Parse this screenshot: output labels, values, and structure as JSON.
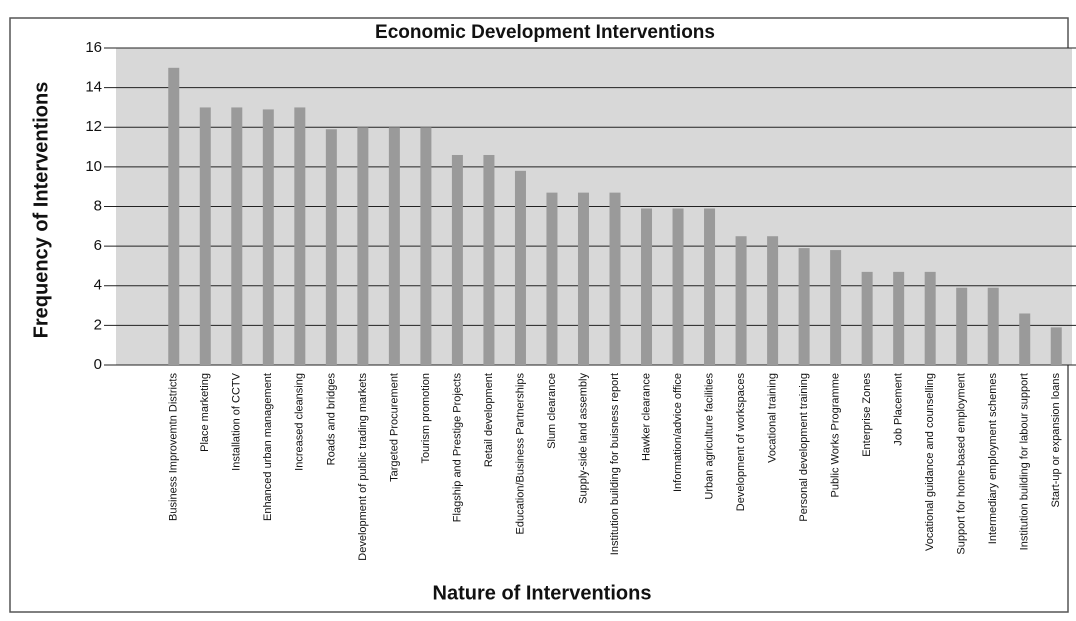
{
  "chart_data": {
    "type": "bar",
    "title": "Economic Development Interventions",
    "xlabel": "Nature of Interventions",
    "ylabel": "Frequency of Interventions",
    "categories": [
      "Business Improvemtn Districts",
      "Place marketing",
      "Installation of CCTV",
      "Enhanced urban management",
      "Increased cleansing",
      "Roads and bridges",
      "Development of public trading markets",
      "Targeted Procurement",
      "Tourism promotion",
      "Flagship and Prestige Projects",
      "Retail development",
      "Education/Business Partnerships",
      "Slum clearance",
      "Supply-side land assembly",
      "Institution building for buisness report",
      "Hawker clearance",
      "Information/advice office",
      "Urban agriculture facilities",
      "Development of workspaces",
      "Vocational training",
      "Personal development training",
      "Public Works Programme",
      "Enterprise Zones",
      "Job Placement",
      "Vocational guidance and counselling",
      "Support for home-based employment",
      "Intermediary employment schemes",
      "Institution building for labour support",
      "Start-up or expansion loans"
    ],
    "values": [
      15,
      13,
      13,
      12.9,
      13,
      11.9,
      12,
      12,
      12,
      10.6,
      10.6,
      9.8,
      8.7,
      8.7,
      8.7,
      7.9,
      7.9,
      7.9,
      6.5,
      6.5,
      5.9,
      5.8,
      4.7,
      4.7,
      4.7,
      3.9,
      3.9,
      2.6,
      1.9
    ],
    "color": "#9a9a9a",
    "ylim": [
      0,
      16
    ],
    "yticks": [
      0,
      2,
      4,
      6,
      8,
      10,
      12,
      14,
      16
    ],
    "grid": true
  }
}
